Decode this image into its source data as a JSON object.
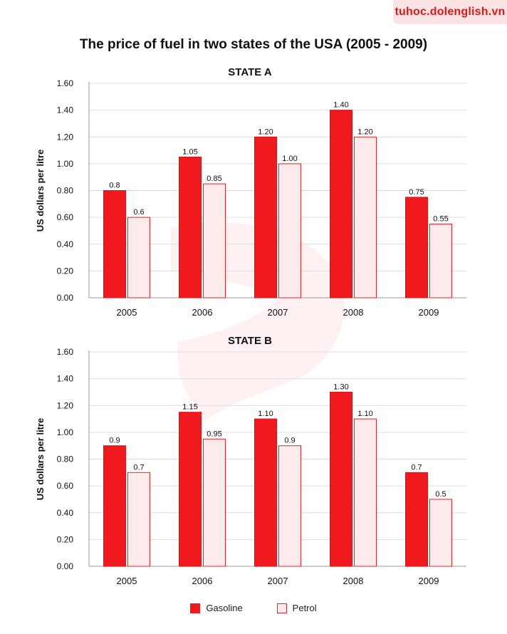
{
  "site_tag": "tuhoc.dolenglish.vn",
  "title": "The price of fuel in two states of the USA (2005 - 2009)",
  "colors": {
    "gasoline_fill": "#f0191e",
    "petrol_fill": "#fdeaea",
    "petrol_stroke": "#e3242b",
    "grid": "#dddddd",
    "axis": "#999999",
    "accent": "#e3151a"
  },
  "legend": [
    {
      "name": "Gasoline"
    },
    {
      "name": "Petrol"
    }
  ],
  "chart_data": [
    {
      "type": "bar",
      "title": "STATE A",
      "xlabel": "",
      "ylabel": "US dollars per litre",
      "ylim": [
        0,
        1.6
      ],
      "yticks": [
        "0.00",
        "0.20",
        "0.40",
        "0.60",
        "0.80",
        "1.00",
        "1.20",
        "1.40",
        "1.60"
      ],
      "categories": [
        "2005",
        "2006",
        "2007",
        "2008",
        "2009"
      ],
      "grid": true,
      "legend_position": "bottom",
      "series": [
        {
          "name": "Gasoline",
          "values": [
            0.8,
            1.05,
            1.2,
            1.4,
            0.75
          ],
          "labels": [
            "0.8",
            "1.05",
            "1.20",
            "1.40",
            "0.75"
          ]
        },
        {
          "name": "Petrol",
          "values": [
            0.6,
            0.85,
            1.0,
            1.2,
            0.55
          ],
          "labels": [
            "0.6",
            "0.85",
            "1.00",
            "1.20",
            "0.55"
          ]
        }
      ]
    },
    {
      "type": "bar",
      "title": "STATE B",
      "xlabel": "",
      "ylabel": "US dollars per litre",
      "ylim": [
        0,
        1.6
      ],
      "yticks": [
        "0.00",
        "0.20",
        "0.40",
        "0.60",
        "0.80",
        "1.00",
        "1.20",
        "1.40",
        "1.60"
      ],
      "categories": [
        "2005",
        "2006",
        "2007",
        "2008",
        "2009"
      ],
      "grid": true,
      "legend_position": "bottom",
      "series": [
        {
          "name": "Gasoline",
          "values": [
            0.9,
            1.15,
            1.1,
            1.3,
            0.7
          ],
          "labels": [
            "0.9",
            "1.15",
            "1.10",
            "1.30",
            "0.7"
          ]
        },
        {
          "name": "Petrol",
          "values": [
            0.7,
            0.95,
            0.9,
            1.1,
            0.5
          ],
          "labels": [
            "0.7",
            "0.95",
            "0.9",
            "1.10",
            "0.5"
          ]
        }
      ]
    }
  ]
}
